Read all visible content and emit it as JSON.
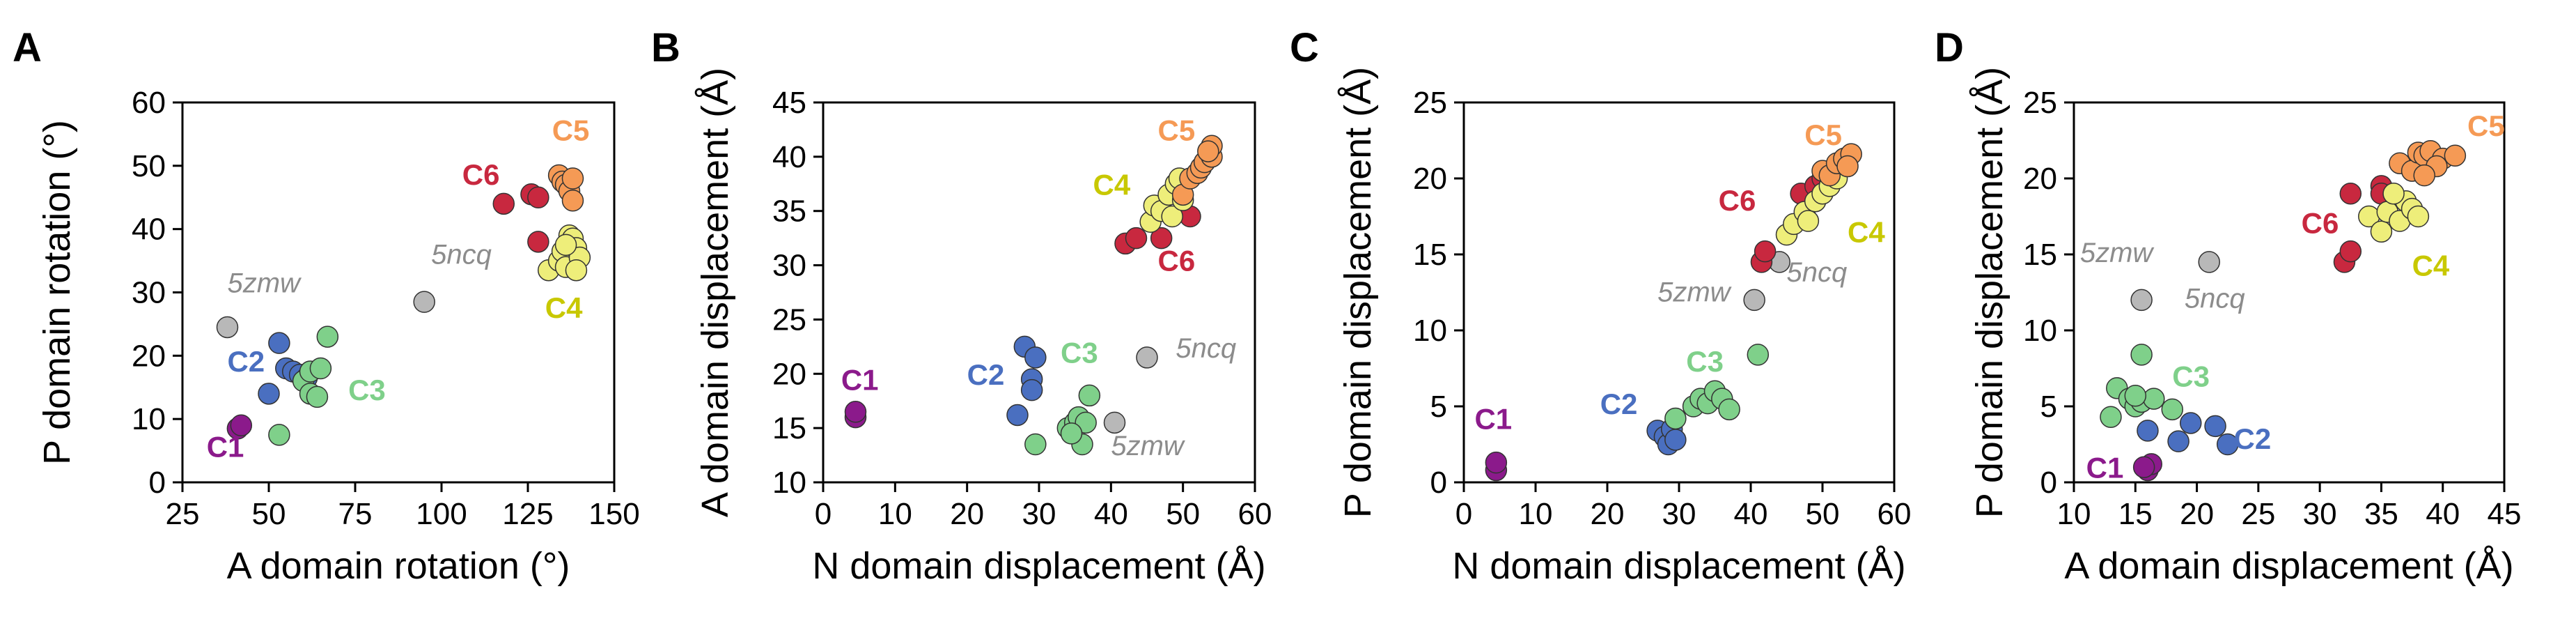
{
  "colors": {
    "C1": "#8b1a8b",
    "C2": "#4a6fc0",
    "C3": "#7fd08a",
    "C4": "#eeee7a",
    "C5": "#f59a55",
    "C6": "#c8283f",
    "ref": "#b8b8b8",
    "ref_text": "#8c8c8c",
    "C4_text": "#c8c800"
  },
  "chart_data": [
    {
      "type": "scatter",
      "panel": "A",
      "xlabel": "A domain rotation (°)",
      "ylabel": "P domain rotation (°)",
      "xlim": [
        25,
        150
      ],
      "ylim": [
        0,
        60
      ],
      "xticks": [
        "25",
        "50",
        "75",
        "100",
        "125",
        "150"
      ],
      "yticks": [
        "0",
        "10",
        "20",
        "30",
        "40",
        "50",
        "60"
      ],
      "series": [
        {
          "name": "C1",
          "points": [
            [
              41,
              8.5
            ],
            [
              42,
              9
            ]
          ]
        },
        {
          "name": "C2",
          "points": [
            [
              50,
              14
            ],
            [
              53,
              22
            ],
            [
              55,
              18
            ],
            [
              57,
              17.5
            ],
            [
              59,
              17
            ],
            [
              61,
              16.5
            ]
          ]
        },
        {
          "name": "C3",
          "points": [
            [
              53,
              7.5
            ],
            [
              60,
              16
            ],
            [
              62,
              14
            ],
            [
              62,
              17.5
            ],
            [
              64,
              13.5
            ],
            [
              65,
              18
            ],
            [
              67,
              23
            ]
          ]
        },
        {
          "name": "C6",
          "points": [
            [
              118,
              44
            ],
            [
              126,
              45.5
            ],
            [
              128,
              38
            ],
            [
              128,
              45
            ]
          ]
        },
        {
          "name": "C5",
          "points": [
            [
              134,
              48.5
            ],
            [
              135,
              47.5
            ],
            [
              136,
              47
            ],
            [
              137,
              46
            ],
            [
              138,
              44.5
            ],
            [
              138,
              48
            ]
          ]
        },
        {
          "name": "C4",
          "points": [
            [
              131,
              33.5
            ],
            [
              134,
              35
            ],
            [
              135,
              36.5
            ],
            [
              136,
              34
            ],
            [
              137,
              39
            ],
            [
              138,
              38.5
            ],
            [
              139,
              37
            ],
            [
              140,
              35.5
            ],
            [
              139,
              33.5
            ],
            [
              136,
              37.5
            ]
          ]
        },
        {
          "name": "ref",
          "points": [
            [
              38,
              24.5
            ],
            [
              95,
              28.5
            ]
          ]
        }
      ],
      "annotations": [
        {
          "text": "C1",
          "series": "C1",
          "at": [
            32,
            4
          ]
        },
        {
          "text": "C2",
          "series": "C2",
          "at": [
            38,
            17.5
          ]
        },
        {
          "text": "C3",
          "series": "C3",
          "at": [
            73,
            13
          ]
        },
        {
          "text": "C4",
          "series": "C4",
          "at": [
            130,
            26
          ]
        },
        {
          "text": "C5",
          "series": "C5",
          "at": [
            132,
            54
          ]
        },
        {
          "text": "C6",
          "series": "C6",
          "at": [
            106,
            47
          ]
        },
        {
          "text": "5zmw",
          "series": "ref",
          "at": [
            38,
            30
          ]
        },
        {
          "text": "5ncq",
          "series": "ref",
          "at": [
            97,
            34.5
          ]
        }
      ]
    },
    {
      "type": "scatter",
      "panel": "B",
      "xlabel": "N domain displacement (Å)",
      "ylabel": "A domain displacement (Å)",
      "xlim": [
        0,
        60
      ],
      "ylim": [
        10,
        45
      ],
      "xticks": [
        "0",
        "10",
        "20",
        "30",
        "40",
        "50",
        "60"
      ],
      "yticks": [
        "10",
        "15",
        "20",
        "25",
        "30",
        "35",
        "40",
        "45"
      ],
      "series": [
        {
          "name": "C1",
          "points": [
            [
              4.5,
              16
            ],
            [
              4.5,
              16.5
            ]
          ]
        },
        {
          "name": "C2",
          "points": [
            [
              27,
              16.2
            ],
            [
              28,
              22.5
            ],
            [
              29,
              19.5
            ],
            [
              29,
              18.5
            ],
            [
              29.5,
              21.5
            ]
          ]
        },
        {
          "name": "C3",
          "points": [
            [
              29.5,
              13.5
            ],
            [
              34,
              15
            ],
            [
              35,
              15.5
            ],
            [
              35.5,
              16
            ],
            [
              36,
              13.5
            ],
            [
              36.5,
              15.5
            ],
            [
              37,
              18
            ],
            [
              34.5,
              14.5
            ]
          ]
        },
        {
          "name": "C6",
          "points": [
            [
              42,
              32
            ],
            [
              43.5,
              32.5
            ],
            [
              47,
              32.5
            ],
            [
              50,
              35
            ],
            [
              51,
              34.5
            ]
          ]
        },
        {
          "name": "C5",
          "points": [
            [
              50,
              36.5
            ],
            [
              51,
              38
            ],
            [
              52,
              38.5
            ],
            [
              52.5,
              39
            ],
            [
              53,
              39.5
            ],
            [
              54,
              40
            ],
            [
              54,
              41
            ],
            [
              53.5,
              40.5
            ]
          ]
        },
        {
          "name": "C4",
          "points": [
            [
              45.5,
              34
            ],
            [
              46,
              35.5
            ],
            [
              47,
              35
            ],
            [
              48,
              36.5
            ],
            [
              48.5,
              34.5
            ],
            [
              49,
              37.5
            ],
            [
              50,
              36
            ],
            [
              49.5,
              38
            ]
          ]
        },
        {
          "name": "ref",
          "points": [
            [
              40.5,
              15.5
            ],
            [
              45,
              21.5
            ]
          ]
        }
      ],
      "annotations": [
        {
          "text": "C1",
          "series": "C1",
          "at": [
            2.5,
            18.5
          ]
        },
        {
          "text": "C2",
          "series": "C2",
          "at": [
            20,
            19
          ]
        },
        {
          "text": "C3",
          "series": "C3",
          "at": [
            33,
            21
          ]
        },
        {
          "text": "C4",
          "series": "C4",
          "at": [
            37.5,
            36.5
          ]
        },
        {
          "text": "C5",
          "series": "C5",
          "at": [
            46.5,
            41.5
          ]
        },
        {
          "text": "C6",
          "series": "C6",
          "at": [
            46.5,
            29.5
          ]
        },
        {
          "text": "5zmw",
          "series": "ref",
          "at": [
            40,
            12.5
          ]
        },
        {
          "text": "5ncq",
          "series": "ref",
          "at": [
            49,
            21.5
          ]
        }
      ]
    },
    {
      "type": "scatter",
      "panel": "C",
      "xlabel": "N domain displacement (Å)",
      "ylabel": "P domain displacement (Å)",
      "xlim": [
        0,
        60
      ],
      "ylim": [
        0,
        25
      ],
      "xticks": [
        "0",
        "10",
        "20",
        "30",
        "40",
        "50",
        "60"
      ],
      "yticks": [
        "0",
        "5",
        "10",
        "15",
        "20",
        "25"
      ],
      "series": [
        {
          "name": "C1",
          "points": [
            [
              4.5,
              0.8
            ],
            [
              4.5,
              1.3
            ]
          ]
        },
        {
          "name": "C2",
          "points": [
            [
              27,
              3.4
            ],
            [
              28,
              3
            ],
            [
              28.5,
              2.5
            ],
            [
              29,
              3.5
            ],
            [
              29.5,
              2.8
            ]
          ]
        },
        {
          "name": "C3",
          "points": [
            [
              29.5,
              4.2
            ],
            [
              32,
              5
            ],
            [
              33,
              5.5
            ],
            [
              34,
              5.2
            ],
            [
              35,
              6
            ],
            [
              36,
              5.5
            ],
            [
              37,
              4.8
            ],
            [
              41,
              8.4
            ]
          ]
        },
        {
          "name": "C6",
          "points": [
            [
              41.5,
              14.5
            ],
            [
              42,
              15.2
            ],
            [
              47,
              19
            ],
            [
              49,
              19.5
            ],
            [
              50,
              20
            ]
          ]
        },
        {
          "name": "C5",
          "points": [
            [
              50,
              20.5
            ],
            [
              51,
              20.2
            ],
            [
              52,
              21
            ],
            [
              53,
              21.3
            ],
            [
              54,
              21.6
            ],
            [
              53.5,
              20.8
            ]
          ]
        },
        {
          "name": "C4",
          "points": [
            [
              45,
              16.3
            ],
            [
              46,
              17
            ],
            [
              47.5,
              17.8
            ],
            [
              48,
              17.2
            ],
            [
              49,
              18.5
            ],
            [
              50,
              19
            ],
            [
              51,
              19.5
            ],
            [
              52,
              20
            ]
          ]
        },
        {
          "name": "ref",
          "points": [
            [
              40.5,
              12
            ],
            [
              44,
              14.5
            ]
          ]
        }
      ],
      "annotations": [
        {
          "text": "C1",
          "series": "C1",
          "at": [
            1.5,
            3.5
          ]
        },
        {
          "text": "C2",
          "series": "C2",
          "at": [
            19,
            4.5
          ]
        },
        {
          "text": "C3",
          "series": "C3",
          "at": [
            31,
            7.3
          ]
        },
        {
          "text": "C4",
          "series": "C4",
          "at": [
            53.5,
            15.8
          ]
        },
        {
          "text": "C5",
          "series": "C5",
          "at": [
            47.5,
            22.2
          ]
        },
        {
          "text": "C6",
          "series": "C6",
          "at": [
            35.5,
            17.9
          ]
        },
        {
          "text": "5zmw",
          "series": "ref",
          "at": [
            27,
            11.9
          ]
        },
        {
          "text": "5ncq",
          "series": "ref",
          "at": [
            45,
            13.2
          ]
        }
      ]
    },
    {
      "type": "scatter",
      "panel": "D",
      "xlabel": "A domain displacement (Å)",
      "ylabel": "P domain displacement (Å)",
      "xlim": [
        10,
        45
      ],
      "ylim": [
        0,
        25
      ],
      "xticks": [
        "10",
        "15",
        "20",
        "25",
        "30",
        "35",
        "40",
        "45"
      ],
      "yticks": [
        "0",
        "5",
        "10",
        "15",
        "20",
        "25"
      ],
      "series": [
        {
          "name": "C1",
          "points": [
            [
              16,
              0.8
            ],
            [
              16.3,
              1.2
            ],
            [
              15.7,
              1
            ]
          ]
        },
        {
          "name": "C2",
          "points": [
            [
              16,
              3.4
            ],
            [
              18.5,
              2.7
            ],
            [
              19.5,
              3.9
            ],
            [
              21.5,
              3.7
            ],
            [
              22.5,
              2.5
            ]
          ]
        },
        {
          "name": "C3",
          "points": [
            [
              13,
              4.3
            ],
            [
              13.5,
              6.2
            ],
            [
              14.5,
              5.5
            ],
            [
              15,
              5
            ],
            [
              15.5,
              5.3
            ],
            [
              15.5,
              8.4
            ],
            [
              16.5,
              5.5
            ],
            [
              18,
              4.8
            ],
            [
              15,
              5.7
            ]
          ]
        },
        {
          "name": "C6",
          "points": [
            [
              32,
              14.5
            ],
            [
              32.5,
              15.2
            ],
            [
              32.5,
              19
            ],
            [
              35,
              19.5
            ],
            [
              35,
              19
            ]
          ]
        },
        {
          "name": "C5",
          "points": [
            [
              36.5,
              21
            ],
            [
              37.5,
              20.5
            ],
            [
              38,
              21.7
            ],
            [
              38.5,
              21.5
            ],
            [
              39,
              21.8
            ],
            [
              40,
              21.3
            ],
            [
              41,
              21.5
            ],
            [
              39.5,
              20.8
            ],
            [
              38.5,
              20.2
            ]
          ]
        },
        {
          "name": "C4",
          "points": [
            [
              34,
              17.5
            ],
            [
              35,
              16.5
            ],
            [
              35.5,
              17.8
            ],
            [
              36.5,
              17.2
            ],
            [
              37,
              18.5
            ],
            [
              37.5,
              18
            ],
            [
              38,
              17.5
            ],
            [
              36,
              19
            ]
          ]
        },
        {
          "name": "ref",
          "points": [
            [
              15.5,
              12
            ],
            [
              21,
              14.5
            ]
          ]
        }
      ],
      "annotations": [
        {
          "text": "C1",
          "series": "C1",
          "at": [
            11,
            0.3
          ]
        },
        {
          "text": "C2",
          "series": "C2",
          "at": [
            23,
            2.2
          ]
        },
        {
          "text": "C3",
          "series": "C3",
          "at": [
            18,
            6.3
          ]
        },
        {
          "text": "C4",
          "series": "C4",
          "at": [
            37.5,
            13.6
          ]
        },
        {
          "text": "C5",
          "series": "C5",
          "at": [
            42,
            22.8
          ]
        },
        {
          "text": "C6",
          "series": "C6",
          "at": [
            28.5,
            16.4
          ]
        },
        {
          "text": "5zmw",
          "series": "ref",
          "at": [
            10.5,
            14.5
          ]
        },
        {
          "text": "5ncq",
          "series": "ref",
          "at": [
            19,
            11.5
          ]
        }
      ]
    }
  ]
}
